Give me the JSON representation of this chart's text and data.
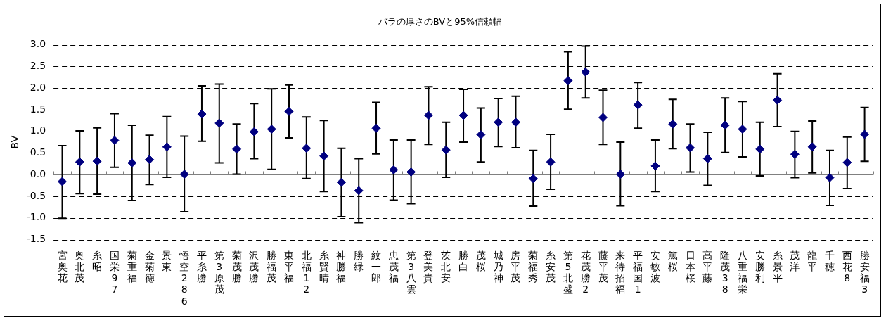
{
  "chart_data": {
    "type": "scatter",
    "title": "バラの厚さのBVと95%信頼幅",
    "ylabel": "BV",
    "marker": "diamond",
    "grid": "y",
    "legend": false,
    "categories": [
      "宮奥花",
      "奥北茂",
      "糸昭",
      "国栄97",
      "菊重福",
      "金菊徳",
      "景東",
      "悟空286",
      "平糸勝",
      "第3原茂",
      "菊茂勝",
      "沢茂勝",
      "勝福茂",
      "東平福",
      "北福12",
      "糸賢晴",
      "神勝福",
      "勝緑",
      "紋一郎",
      "忠茂福",
      "第3八雲",
      "登美貴",
      "茨北安",
      "勝白",
      "茂桜",
      "城乃神",
      "房平茂",
      "菊福秀",
      "糸安茂",
      "第5北盛",
      "花茂勝2",
      "藤平茂",
      "来待招福",
      "平福国1",
      "安敏波",
      "篤桜",
      "日本桜",
      "高平藤",
      "隆茂38",
      "八重福栄",
      "安勝利",
      "糸景平",
      "茂洋",
      "龍平",
      "千穂",
      "西花8",
      "勝安福3"
    ],
    "ylim": [
      -1.5,
      3.0
    ],
    "yticks": [
      -1.5,
      {
        "value": -1,
        "label": "-1.0"
      },
      -0.5,
      {
        "value": 0,
        "label": "0.0"
      },
      0.5,
      {
        "value": 1,
        "label": "1.0"
      },
      1.5,
      {
        "value": 2,
        "label": "2.0"
      },
      2.5,
      {
        "value": 3,
        "label": "3.0"
      }
    ],
    "series": [
      {
        "color": "#000080",
        "values": [
          -0.16,
          0.29,
          0.31,
          0.79,
          0.27,
          0.35,
          0.64,
          0.01,
          1.4,
          1.19,
          0.59,
          0.99,
          1.05,
          1.46,
          0.61,
          0.43,
          -0.18,
          -0.37,
          1.07,
          0.11,
          0.06,
          1.37,
          0.57,
          1.37,
          0.92,
          1.21,
          1.21,
          -0.09,
          0.29,
          2.17,
          2.37,
          1.32,
          0.01,
          1.61,
          0.2,
          1.17,
          0.62,
          0.37,
          1.14,
          1.05,
          0.59,
          1.72,
          0.47,
          0.64,
          -0.07,
          0.28,
          0.93
        ],
        "errors": [
          [
            -1.01,
            0.67
          ],
          [
            -0.44,
            1.01
          ],
          [
            -0.45,
            1.08
          ],
          [
            0.17,
            1.41
          ],
          [
            -0.6,
            1.14
          ],
          [
            -0.23,
            0.91
          ],
          [
            -0.06,
            1.34
          ],
          [
            -0.86,
            0.89
          ],
          [
            0.77,
            2.05
          ],
          [
            0.27,
            2.09
          ],
          [
            0.01,
            1.17
          ],
          [
            0.37,
            1.64
          ],
          [
            0.12,
            1.98
          ],
          [
            0.85,
            2.07
          ],
          [
            -0.09,
            1.33
          ],
          [
            -0.39,
            1.25
          ],
          [
            -0.97,
            0.61
          ],
          [
            -1.11,
            0.37
          ],
          [
            0.48,
            1.67
          ],
          [
            -0.59,
            0.8
          ],
          [
            -0.67,
            0.8
          ],
          [
            0.7,
            2.03
          ],
          [
            -0.06,
            1.21
          ],
          [
            0.75,
            1.97
          ],
          [
            0.29,
            1.54
          ],
          [
            0.65,
            1.76
          ],
          [
            0.62,
            1.81
          ],
          [
            -0.73,
            0.56
          ],
          [
            -0.34,
            0.93
          ],
          [
            1.51,
            2.84
          ],
          [
            1.77,
            2.97
          ],
          [
            0.7,
            1.95
          ],
          [
            -0.72,
            0.75
          ],
          [
            1.07,
            2.13
          ],
          [
            -0.39,
            0.8
          ],
          [
            0.6,
            1.74
          ],
          [
            0.06,
            1.17
          ],
          [
            -0.25,
            0.98
          ],
          [
            0.51,
            1.77
          ],
          [
            0.41,
            1.69
          ],
          [
            -0.03,
            1.21
          ],
          [
            1.11,
            2.33
          ],
          [
            -0.07,
            1.0
          ],
          [
            0.04,
            1.24
          ],
          [
            -0.71,
            0.56
          ],
          [
            -0.32,
            0.87
          ],
          [
            0.31,
            1.55
          ]
        ]
      }
    ]
  }
}
